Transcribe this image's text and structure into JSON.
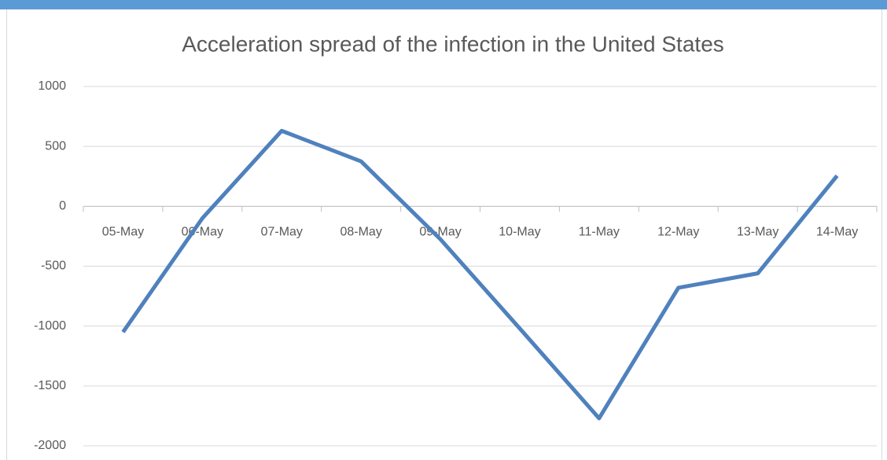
{
  "chart_data": {
    "type": "line",
    "title": "Acceleration spread of the infection in the United States",
    "categories": [
      "05-May",
      "06-May",
      "07-May",
      "08-May",
      "09-May",
      "10-May",
      "11-May",
      "12-May",
      "13-May",
      "14-May"
    ],
    "series": [
      {
        "name": "Acceleration",
        "color": "#4f81bd",
        "values": [
          -1050,
          -100,
          630,
          375,
          -275,
          -1020,
          -1770,
          -680,
          -560,
          255
        ]
      }
    ],
    "ylim": [
      -2000,
      1000
    ],
    "yticks": [
      -2000,
      -1500,
      -1000,
      -500,
      0,
      500,
      1000
    ],
    "grid": true
  }
}
